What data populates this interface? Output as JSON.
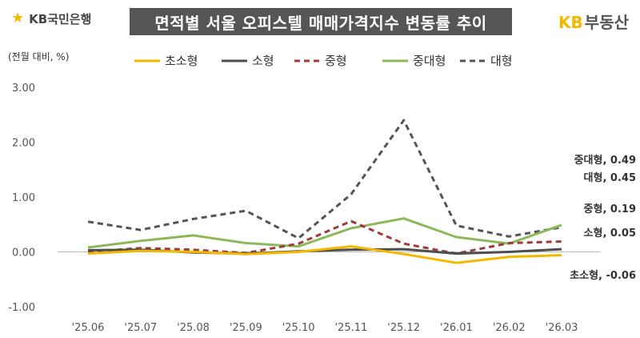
{
  "header": {
    "left_logo_text": "KB국민은행",
    "title": "면적별 서울 오피스텔 매매가격지수 변동률 추이",
    "right_logo_kb": "KB",
    "right_logo_rest": "부동산"
  },
  "chart_data": {
    "type": "line",
    "title": "면적별 서울 오피스텔 매매가격지수 변동률 추이",
    "ylabel": "(전월 대비, %)",
    "xlabel": "",
    "ylim": [
      -1.0,
      3.0
    ],
    "yticks": [
      "3.00",
      "2.00",
      "1.00",
      "0.00",
      "-1.00"
    ],
    "ytick_values": [
      3,
      2,
      1,
      0,
      -1
    ],
    "grid": false,
    "legend_position": "top",
    "categories": [
      "'25.06",
      "'25.07",
      "'25.08",
      "'25.09",
      "'25.10",
      "'25.11",
      "'25.12",
      "'26.01",
      "'26.02",
      "'26.03"
    ],
    "series": [
      {
        "name": "초소형",
        "color": "#F5B800",
        "dash": "solid",
        "values": [
          -0.03,
          0.02,
          0.0,
          -0.04,
          0.0,
          0.1,
          -0.04,
          -0.2,
          -0.09,
          -0.06
        ],
        "end_label": "초소형, -0.06"
      },
      {
        "name": "소형",
        "color": "#4D4D4D",
        "dash": "solid",
        "values": [
          0.03,
          0.04,
          -0.01,
          -0.03,
          0.01,
          0.04,
          0.05,
          -0.03,
          0.0,
          0.05
        ],
        "end_label": "소형, 0.05"
      },
      {
        "name": "중형",
        "color": "#9E3B3B",
        "dash": "dash",
        "values": [
          0.0,
          0.07,
          0.04,
          -0.02,
          0.15,
          0.56,
          0.15,
          -0.03,
          0.16,
          0.19
        ],
        "end_label": "중형, 0.19"
      },
      {
        "name": "중대형",
        "color": "#8DB85A",
        "dash": "solid",
        "values": [
          0.08,
          0.2,
          0.3,
          0.16,
          0.1,
          0.43,
          0.61,
          0.27,
          0.15,
          0.49
        ],
        "end_label": "중대형, 0.49"
      },
      {
        "name": "대형",
        "color": "#555555",
        "dash": "dash",
        "values": [
          0.55,
          0.4,
          0.6,
          0.75,
          0.25,
          1.05,
          2.4,
          0.48,
          0.28,
          0.45
        ],
        "end_label": "대형, 0.45"
      }
    ]
  }
}
